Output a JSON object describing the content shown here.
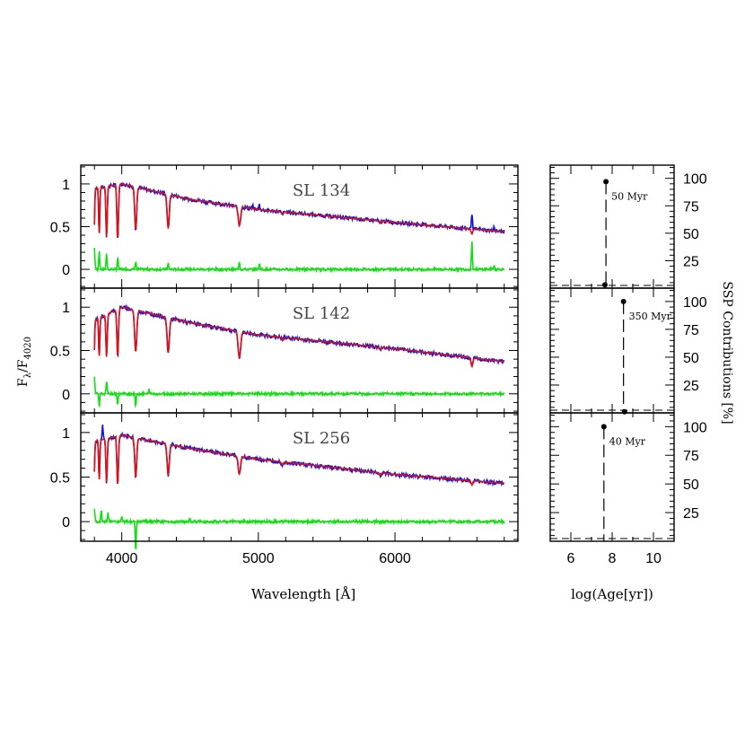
{
  "figure": {
    "xlabel_left": "Wavelength [Å]",
    "xlabel_right": "log(Age[yr])",
    "ylabel_left_main": "F",
    "ylabel_left_sub1": "λ",
    "ylabel_left_mid": "/F",
    "ylabel_left_sub2": "4020",
    "ylabel_right": "SSP Contributions [%]"
  },
  "colors": {
    "observed": "#1010e0",
    "model": "#e01010",
    "residual": "#10e010",
    "axes": "#000000"
  },
  "chart_data": [
    {
      "type": "line",
      "title": "SL 134",
      "xlim": [
        3700,
        6900
      ],
      "ylim": [
        -0.22,
        1.22
      ],
      "xticks": [
        4000,
        5000,
        6000
      ],
      "yticks": [
        0,
        0.5,
        1
      ],
      "ytick_labels": [
        "0",
        "0.5",
        "1"
      ],
      "x_range": [
        3800,
        6800
      ],
      "lines": [
        {
          "x": 4102,
          "depth": 0.5,
          "width": 10
        },
        {
          "x": 4340,
          "depth": 0.4,
          "width": 11
        },
        {
          "x": 4861,
          "depth": 0.22,
          "width": 12
        },
        {
          "x": 3970,
          "depth": 0.65,
          "width": 8
        },
        {
          "x": 3889,
          "depth": 0.6,
          "width": 7
        },
        {
          "x": 3835,
          "depth": 0.55,
          "width": 6
        },
        {
          "x": 3798,
          "depth": 0.5,
          "width": 5
        },
        {
          "x": 5175,
          "depth": 0.03,
          "width": 10
        },
        {
          "x": 5890,
          "depth": 0.03,
          "width": 8
        },
        {
          "x": 6563,
          "depth": 0.06,
          "width": 8
        }
      ],
      "emission": [
        {
          "x": 6563,
          "height": 0.25,
          "width": 6
        },
        {
          "x": 5007,
          "height": 0.06,
          "width": 5
        },
        {
          "x": 4959,
          "height": 0.03,
          "width": 5
        },
        {
          "x": 6725,
          "height": 0.05,
          "width": 6
        }
      ],
      "continuum": [
        {
          "x": 3800,
          "y": 0.95
        },
        {
          "x": 4000,
          "y": 1.0
        },
        {
          "x": 4500,
          "y": 0.82
        },
        {
          "x": 5000,
          "y": 0.7
        },
        {
          "x": 6000,
          "y": 0.55
        },
        {
          "x": 6800,
          "y": 0.44
        }
      ],
      "residual_spikes": [
        {
          "x": 3800,
          "v": 0.25
        },
        {
          "x": 3835,
          "v": 0.22
        },
        {
          "x": 3889,
          "v": 0.18
        },
        {
          "x": 3970,
          "v": 0.14
        },
        {
          "x": 4102,
          "v": 0.1
        },
        {
          "x": 4340,
          "v": 0.07
        },
        {
          "x": 4861,
          "v": 0.1
        },
        {
          "x": 5007,
          "v": 0.08
        },
        {
          "x": 6563,
          "v": 0.33
        },
        {
          "x": 6725,
          "v": 0.05
        }
      ],
      "ssp": {
        "xlim": [
          5,
          11
        ],
        "ylim": [
          0,
          112
        ],
        "xticks": [
          6,
          8,
          10
        ],
        "yticks": [
          25,
          50,
          75,
          100
        ],
        "points": [
          {
            "x": 7.7,
            "y": 97
          },
          {
            "x": 7.65,
            "y": 3
          }
        ],
        "dash_x": 7.7,
        "label": "50 Myr"
      }
    },
    {
      "type": "line",
      "title": "SL 142",
      "xlim": [
        3700,
        6900
      ],
      "ylim": [
        -0.22,
        1.22
      ],
      "xticks": [
        4000,
        5000,
        6000
      ],
      "yticks": [
        0,
        0.5,
        1
      ],
      "ytick_labels": [
        "0",
        "0.5",
        "1"
      ],
      "x_range": [
        3800,
        6800
      ],
      "lines": [
        {
          "x": 4102,
          "depth": 0.48,
          "width": 11
        },
        {
          "x": 4340,
          "depth": 0.4,
          "width": 12
        },
        {
          "x": 4861,
          "depth": 0.3,
          "width": 13
        },
        {
          "x": 3970,
          "depth": 0.55,
          "width": 8
        },
        {
          "x": 3889,
          "depth": 0.5,
          "width": 7
        },
        {
          "x": 3835,
          "depth": 0.45,
          "width": 6
        },
        {
          "x": 3798,
          "depth": 0.4,
          "width": 5
        },
        {
          "x": 5175,
          "depth": 0.03,
          "width": 10
        },
        {
          "x": 5890,
          "depth": 0.03,
          "width": 8
        },
        {
          "x": 6563,
          "depth": 0.1,
          "width": 9
        }
      ],
      "emission": [],
      "continuum": [
        {
          "x": 3800,
          "y": 0.85
        },
        {
          "x": 4000,
          "y": 1.0
        },
        {
          "x": 4500,
          "y": 0.82
        },
        {
          "x": 5000,
          "y": 0.68
        },
        {
          "x": 6000,
          "y": 0.52
        },
        {
          "x": 6800,
          "y": 0.37
        }
      ],
      "residual_spikes": [
        {
          "x": 3800,
          "v": 0.2
        },
        {
          "x": 3835,
          "v": -0.15
        },
        {
          "x": 3889,
          "v": 0.16
        },
        {
          "x": 3970,
          "v": -0.12
        },
        {
          "x": 4102,
          "v": -0.15
        },
        {
          "x": 4200,
          "v": 0.05
        }
      ],
      "ssp": {
        "xlim": [
          5,
          11
        ],
        "ylim": [
          0,
          112
        ],
        "xticks": [
          6,
          8,
          10
        ],
        "yticks": [
          25,
          50,
          75,
          100
        ],
        "points": [
          {
            "x": 8.55,
            "y": 100
          },
          {
            "x": 8.6,
            "y": 1
          }
        ],
        "dash_x": 8.55,
        "label": "350 Myr"
      }
    },
    {
      "type": "line",
      "title": "SL 256",
      "xlim": [
        3700,
        6900
      ],
      "ylim": [
        -0.22,
        1.22
      ],
      "xticks": [
        4000,
        5000,
        6000
      ],
      "yticks": [
        0,
        0.5,
        1
      ],
      "ytick_labels": [
        "0",
        "0.5",
        "1"
      ],
      "x_range": [
        3800,
        6800
      ],
      "lines": [
        {
          "x": 4102,
          "depth": 0.45,
          "width": 10
        },
        {
          "x": 4340,
          "depth": 0.35,
          "width": 11
        },
        {
          "x": 4861,
          "depth": 0.2,
          "width": 12
        },
        {
          "x": 3970,
          "depth": 0.55,
          "width": 8
        },
        {
          "x": 3889,
          "depth": 0.5,
          "width": 7
        },
        {
          "x": 3835,
          "depth": 0.45,
          "width": 6
        },
        {
          "x": 3798,
          "depth": 0.4,
          "width": 5
        },
        {
          "x": 5175,
          "depth": 0.03,
          "width": 10
        },
        {
          "x": 5890,
          "depth": 0.03,
          "width": 8
        },
        {
          "x": 6563,
          "depth": 0.05,
          "width": 8
        }
      ],
      "emission": [
        {
          "x": 3860,
          "height": 0.15,
          "width": 6
        }
      ],
      "continuum": [
        {
          "x": 3800,
          "y": 0.9
        },
        {
          "x": 4000,
          "y": 0.97
        },
        {
          "x": 4500,
          "y": 0.82
        },
        {
          "x": 5000,
          "y": 0.7
        },
        {
          "x": 6000,
          "y": 0.53
        },
        {
          "x": 6800,
          "y": 0.43
        }
      ],
      "residual_spikes": [
        {
          "x": 3800,
          "v": 0.15
        },
        {
          "x": 3850,
          "v": 0.13
        },
        {
          "x": 3900,
          "v": 0.1
        },
        {
          "x": 4000,
          "v": 0.05
        },
        {
          "x": 4102,
          "v": -0.35
        },
        {
          "x": 4500,
          "v": 0.04
        }
      ],
      "ssp": {
        "xlim": [
          5,
          11
        ],
        "ylim": [
          0,
          112
        ],
        "xticks": [
          6,
          8,
          10
        ],
        "yticks": [
          25,
          50,
          75,
          100
        ],
        "points": [
          {
            "x": 7.6,
            "y": 100
          }
        ],
        "dash_x": 7.6,
        "label": "40 Myr"
      }
    }
  ]
}
